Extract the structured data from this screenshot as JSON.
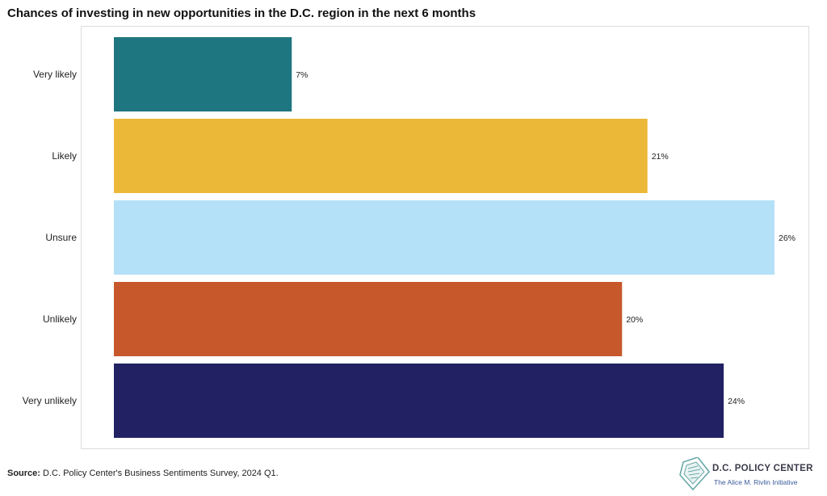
{
  "chart_data": {
    "type": "bar",
    "orientation": "horizontal",
    "title": "Chances of investing in new opportunities in the D.C. region in the next 6 months",
    "categories": [
      "Very likely",
      "Likely",
      "Unsure",
      "Unlikely",
      "Very unlikely"
    ],
    "values": [
      7,
      21,
      26,
      20,
      24
    ],
    "value_labels": [
      "7%",
      "21%",
      "26%",
      "20%",
      "24%"
    ],
    "colors": [
      "#1e7680",
      "#ebb838",
      "#b4e0f8",
      "#c7582c",
      "#212164"
    ],
    "xlim": [
      0,
      26
    ],
    "grid": false,
    "legend": "none"
  },
  "source": {
    "label": "Source:",
    "text": " D.C. Policy Center's Business Sentiments Survey, 2024 Q1."
  },
  "logo": {
    "name": "D.C. POLICY CENTER",
    "tagline": "The Alice M. Rivlin Initiative",
    "icon": "dc-map-document-icon"
  }
}
